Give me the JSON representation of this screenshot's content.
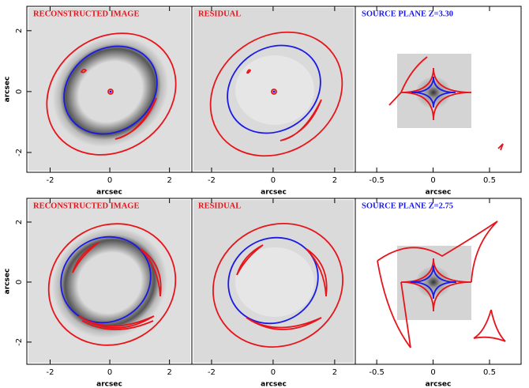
{
  "chart_data": [
    {
      "type": "image",
      "title": "RECONSTRUCTED IMAGE",
      "title_color": "#e8141b",
      "xlabel": "arcsec",
      "ylabel": "arcsec",
      "xlim": [
        -2.78,
        2.75
      ],
      "xticks": [
        -2,
        0,
        2
      ],
      "ylim": [
        -2.65,
        2.8
      ],
      "yticks": [
        -2,
        0,
        2
      ]
    },
    {
      "type": "image",
      "title": "RESIDUAL",
      "title_color": "#e8141b",
      "xlabel": "arcsec",
      "xlim": [
        -2.64,
        2.67
      ],
      "xticks": [
        -2,
        0,
        2
      ]
    },
    {
      "type": "image",
      "title": "SOURCE PLANE Z=3.30",
      "title_color": "#1a1ae6",
      "xlabel": "arcsec",
      "xlim": [
        -0.69,
        0.78
      ],
      "xticks": [
        -0.5,
        0,
        0.5
      ]
    },
    {
      "type": "image",
      "title": "RECONSTRUCTED IMAGE",
      "title_color": "#e8141b",
      "xlabel": "arcsec",
      "ylabel": "arcsec",
      "xlim": [
        -2.78,
        2.75
      ],
      "xticks": [
        -2,
        0,
        2
      ],
      "ylim": [
        -2.74,
        2.79
      ],
      "yticks": [
        -2,
        0,
        2
      ]
    },
    {
      "type": "image",
      "title": "RESIDUAL",
      "title_color": "#e8141b",
      "xlabel": "arcsec",
      "xlim": [
        -2.64,
        2.67
      ],
      "xticks": [
        -2,
        0,
        2
      ]
    },
    {
      "type": "image",
      "title": "SOURCE PLANE Z=2.75",
      "title_color": "#1a1ae6",
      "xlabel": "arcsec",
      "xlim": [
        -0.69,
        0.78
      ],
      "xticks": [
        -0.5,
        0,
        0.5
      ]
    }
  ]
}
